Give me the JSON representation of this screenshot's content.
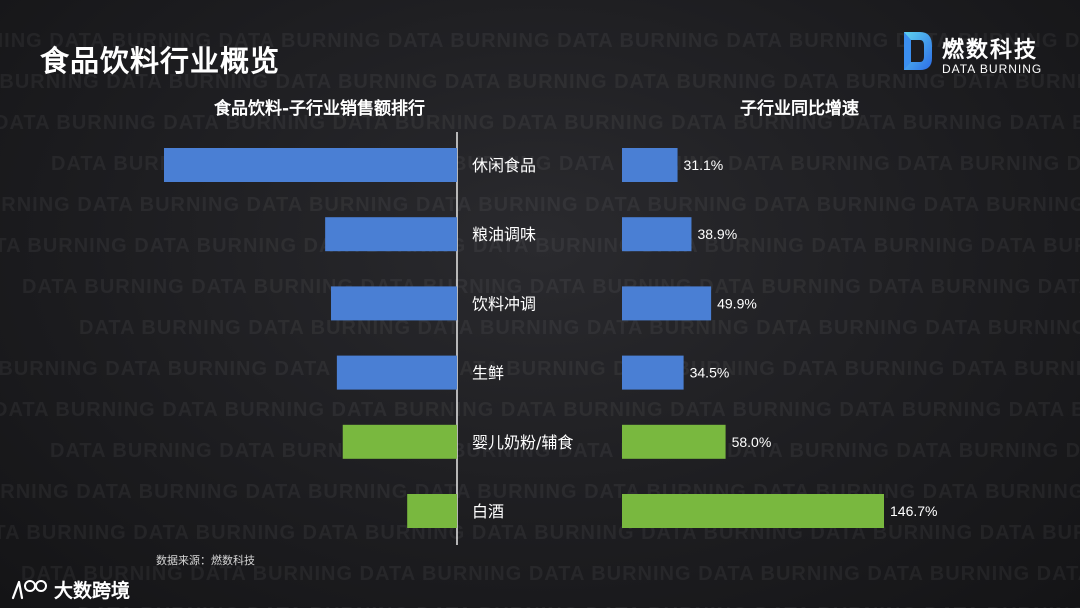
{
  "page": {
    "title": "食品饮料行业概览",
    "watermark_text": "DATA BURNING"
  },
  "logo": {
    "name": "燃数科技",
    "subtitle": "DATA BURNING"
  },
  "left_chart_title": "食品饮料-子行业销售额排行",
  "right_chart_title": "子行业同比增速",
  "source_note": "数据来源：燃数科技",
  "footer_brand": {
    "text": "大数跨境",
    "icon": "kuajing-logo-icon"
  },
  "colors": {
    "blue": "#4a7fd4",
    "green": "#79b83f",
    "axis": "#e8e8e8"
  },
  "chart_data": [
    {
      "type": "bar",
      "orientation": "horizontal",
      "title": "食品饮料-子行业销售额排行",
      "categories": [
        "休闲食品",
        "粮油调味",
        "饮料冲调",
        "生鲜",
        "婴儿奶粉/辅食",
        "白酒"
      ],
      "values": [
        100,
        45,
        43,
        41,
        39,
        17
      ],
      "value_unit": "relative (no printed values)",
      "bar_colors": [
        "blue",
        "blue",
        "blue",
        "blue",
        "green",
        "green"
      ],
      "direction": "right-to-left"
    },
    {
      "type": "bar",
      "orientation": "horizontal",
      "title": "子行业同比增速",
      "categories": [
        "休闲食品",
        "粮油调味",
        "饮料冲调",
        "生鲜",
        "婴儿奶粉/辅食",
        "白酒"
      ],
      "values": [
        31.1,
        38.9,
        49.9,
        34.5,
        58.0,
        146.7
      ],
      "labels": [
        "31.1%",
        "38.9%",
        "49.9%",
        "34.5%",
        "58.0%",
        "146.7%"
      ],
      "unit": "%",
      "bar_colors": [
        "blue",
        "blue",
        "blue",
        "blue",
        "green",
        "green"
      ],
      "xlim": [
        0,
        146.7
      ]
    }
  ]
}
